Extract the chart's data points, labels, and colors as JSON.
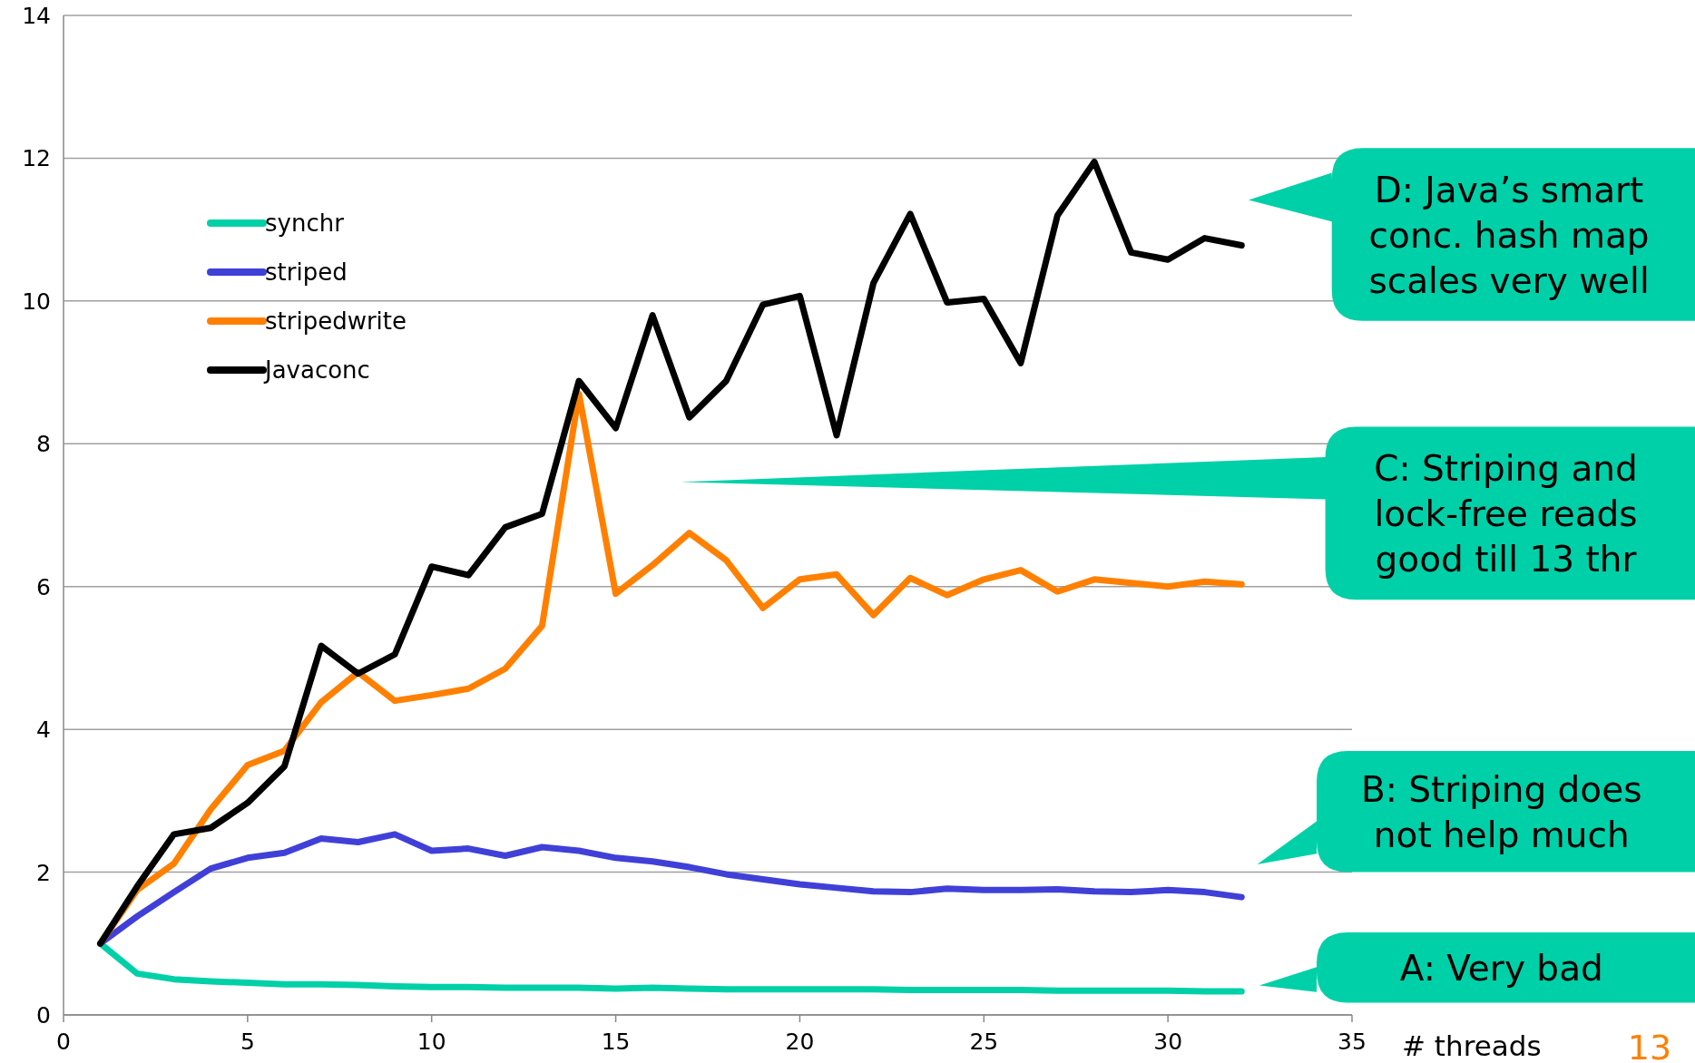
{
  "chart_data": {
    "type": "line",
    "xlabel": "# threads",
    "x": [
      1,
      2,
      3,
      4,
      5,
      6,
      7,
      8,
      9,
      10,
      11,
      12,
      13,
      14,
      15,
      16,
      17,
      18,
      19,
      20,
      21,
      22,
      23,
      24,
      25,
      26,
      27,
      28,
      29,
      30,
      31,
      32
    ],
    "xlim": [
      0,
      35
    ],
    "xticks": [
      0,
      5,
      10,
      15,
      20,
      25,
      30,
      35
    ],
    "ylim": [
      0,
      14
    ],
    "yticks": [
      0,
      2,
      4,
      6,
      8,
      10,
      12,
      14
    ],
    "grid": "y",
    "legend": "top left",
    "marker": "none",
    "line_style": "solid",
    "series": [
      {
        "name": "synchr",
        "color": "#00d0a8",
        "values": [
          1,
          0.58,
          0.5,
          0.47,
          0.45,
          0.43,
          0.43,
          0.42,
          0.4,
          0.39,
          0.39,
          0.38,
          0.38,
          0.38,
          0.37,
          0.38,
          0.37,
          0.36,
          0.36,
          0.36,
          0.36,
          0.36,
          0.35,
          0.35,
          0.35,
          0.35,
          0.34,
          0.34,
          0.34,
          0.34,
          0.33,
          0.33
        ]
      },
      {
        "name": "striped",
        "color": "#4040d8",
        "values": [
          1,
          1.38,
          1.72,
          2.05,
          2.2,
          2.27,
          2.47,
          2.42,
          2.53,
          2.3,
          2.33,
          2.23,
          2.35,
          2.3,
          2.2,
          2.15,
          2.07,
          1.97,
          1.9,
          1.83,
          1.78,
          1.73,
          1.72,
          1.77,
          1.75,
          1.75,
          1.76,
          1.73,
          1.72,
          1.75,
          1.72,
          1.65
        ]
      },
      {
        "name": "stripedwrite",
        "color": "#ff8000",
        "values": [
          1,
          1.75,
          2.12,
          2.88,
          3.5,
          3.7,
          4.38,
          4.8,
          4.4,
          4.48,
          4.57,
          4.85,
          5.45,
          8.7,
          5.9,
          6.3,
          6.75,
          6.37,
          5.7,
          6.1,
          6.17,
          5.6,
          6.12,
          5.88,
          6.1,
          6.23,
          5.93,
          6.1,
          6.05,
          6,
          6.07,
          6.03
        ]
      },
      {
        "name": "Javaconc",
        "color": "#000000",
        "values": [
          1,
          1.8,
          2.53,
          2.62,
          2.97,
          3.48,
          5.17,
          4.78,
          5.05,
          6.28,
          6.16,
          6.83,
          7.02,
          8.88,
          8.22,
          9.8,
          8.37,
          8.88,
          9.95,
          10.07,
          8.12,
          10.25,
          11.22,
          9.98,
          10.03,
          9.13,
          11.2,
          11.95,
          10.68,
          10.58,
          10.88,
          10.78
        ]
      }
    ],
    "annotations": [
      "D: Java’s smart\nconc. hash map\nscales very well",
      "C: Striping and\nlock-free reads\ngood till 13 thr",
      "B: Striping does\nnot help much",
      "A: Very bad",
      "13"
    ]
  }
}
